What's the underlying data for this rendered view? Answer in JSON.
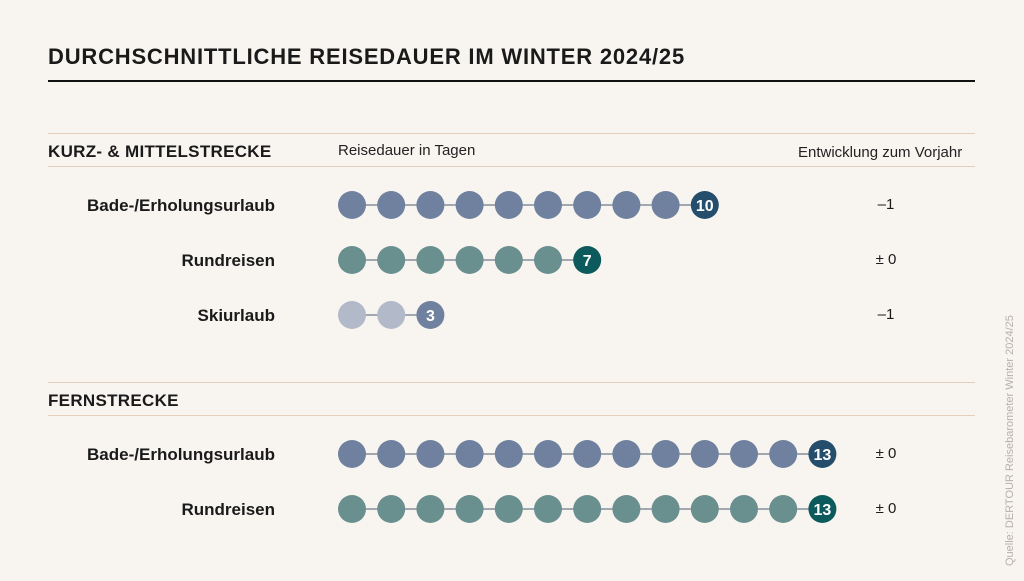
{
  "title": "DURCHSCHNITTLICHE REISEDAUER IM WINTER 2024/25",
  "column_headers": {
    "duration": "Reisedauer in Tagen",
    "change": "Entwicklung zum Vorjahr"
  },
  "source": "Quelle: DERTOUR Reisebarometer Winter 2024/25",
  "colors": {
    "blue_light": "#6f819e",
    "blue_dark": "#244e6c",
    "teal_light": "#6a8f8f",
    "teal_dark": "#0c5a5c",
    "grey_light": "#b2b9c8",
    "connector": "#6f7a88",
    "background": "#f8f5f1"
  },
  "chart_data": {
    "type": "dot-plot",
    "unit": "Tage",
    "sections": [
      {
        "name": "KURZ- & MITTELSTRECKE",
        "rows": [
          {
            "label": "Bade-/Erholungsurlaub",
            "value": 10,
            "change": "–1",
            "color": "#6f819e",
            "accent": "#244e6c"
          },
          {
            "label": "Rundreisen",
            "value": 7,
            "change": "± 0",
            "color": "#6a8f8f",
            "accent": "#0c5a5c"
          },
          {
            "label": "Skiurlaub",
            "value": 3,
            "change": "–1",
            "color": "#b2b9c8",
            "accent": "#6f819e"
          }
        ]
      },
      {
        "name": "FERNSTRECKE",
        "rows": [
          {
            "label": "Bade-/Erholungsurlaub",
            "value": 13,
            "change": "± 0",
            "color": "#6f819e",
            "accent": "#244e6c"
          },
          {
            "label": "Rundreisen",
            "value": 13,
            "change": "± 0",
            "color": "#6a8f8f",
            "accent": "#0c5a5c"
          }
        ]
      }
    ]
  }
}
